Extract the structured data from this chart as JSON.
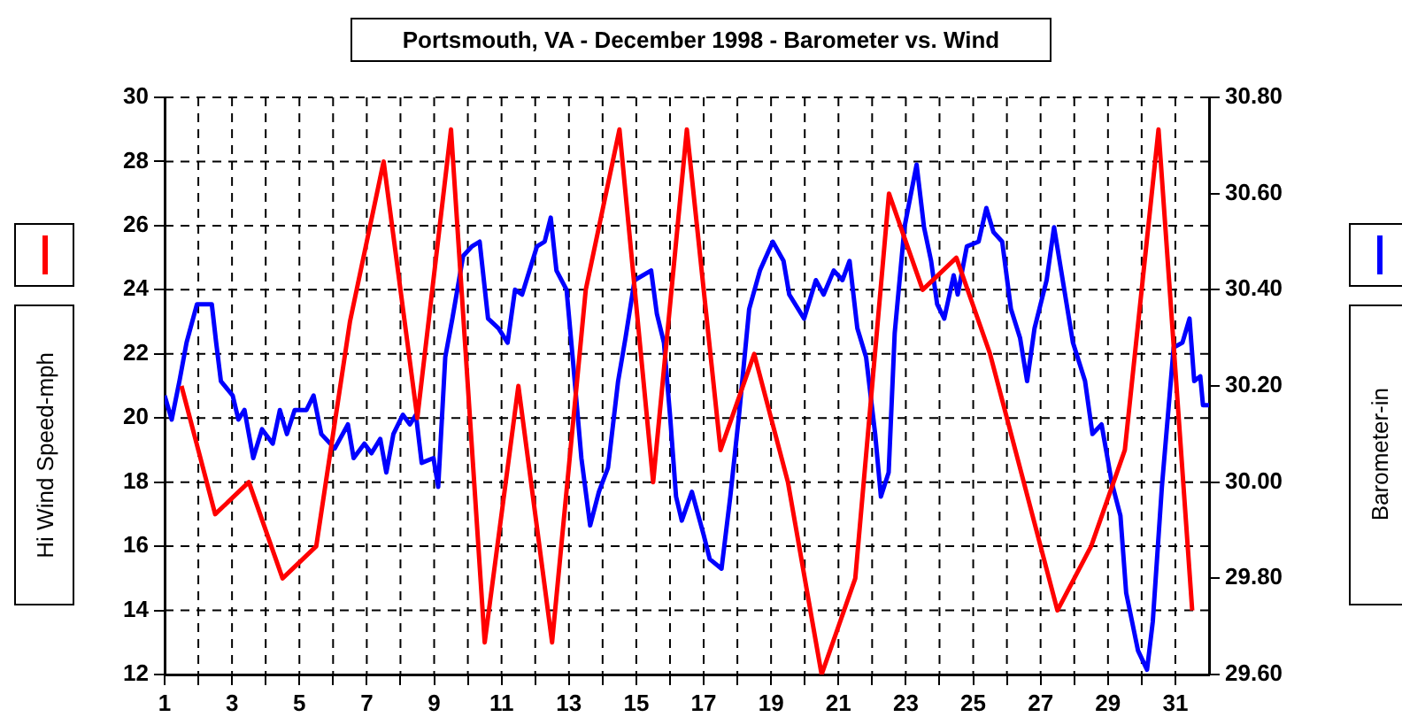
{
  "chart_data": {
    "type": "line",
    "title": "Portsmouth, VA - December 1998 - Barometer vs. Wind",
    "ylabel": "Hi Wind Speed-mph",
    "y2label": "Barometer-in",
    "xlim": [
      1,
      32
    ],
    "xticks": [
      1,
      {
        "value": 2,
        "label": null
      },
      3,
      {
        "value": 4,
        "label": null
      },
      5,
      {
        "value": 6,
        "label": null
      },
      7,
      {
        "value": 8,
        "label": null
      },
      9,
      {
        "value": 10,
        "label": null
      },
      11,
      {
        "value": 12,
        "label": null
      },
      13,
      {
        "value": 14,
        "label": null
      },
      15,
      {
        "value": 16,
        "label": null
      },
      17,
      {
        "value": 18,
        "label": null
      },
      19,
      {
        "value": 20,
        "label": null
      },
      21,
      {
        "value": 22,
        "label": null
      },
      23,
      {
        "value": 24,
        "label": null
      },
      25,
      {
        "value": 26,
        "label": null
      },
      27,
      {
        "value": 28,
        "label": null
      },
      29,
      {
        "value": 30,
        "label": null
      },
      31
    ],
    "ylim": [
      12,
      30
    ],
    "yticks": [
      12,
      14,
      16,
      18,
      20,
      22,
      24,
      26,
      28,
      30
    ],
    "y2lim": [
      29.6,
      30.8
    ],
    "y2ticks": [
      {
        "value": 29.6,
        "label": "29.60"
      },
      {
        "value": 29.8,
        "label": "29.80"
      },
      {
        "value": 30,
        "label": "30.00"
      },
      {
        "value": 30.2,
        "label": "30.20"
      },
      {
        "value": 30.4,
        "label": "30.40"
      },
      {
        "value": 30.6,
        "label": "30.60"
      },
      {
        "value": 30.8,
        "label": "30.80"
      }
    ],
    "grid": true,
    "marker": "none",
    "series": [
      {
        "color": "#ff0000",
        "x": [
          1.5,
          2.5,
          3.5,
          4.5,
          5.5,
          6.5,
          7.5,
          8.5,
          9.5,
          10.5,
          11.5,
          12.5,
          13.5,
          14.5,
          15.5,
          16.5,
          17.5,
          18.5,
          19.5,
          20.5,
          21.5,
          22.5,
          23.5,
          24.5,
          25.5,
          26.5,
          27.5,
          28.5,
          29.5,
          30.5,
          31.5
        ],
        "values": [
          21,
          17,
          18,
          15,
          16,
          23,
          28,
          20,
          29,
          13,
          21,
          13,
          24,
          29,
          18,
          29,
          19,
          22,
          18,
          12,
          15,
          27,
          24,
          25,
          22,
          18,
          14,
          16,
          19,
          29,
          14
        ]
      },
      {
        "color": "#0000ff",
        "axis": "y2",
        "x": [
          1.0,
          1.21,
          1.44,
          1.65,
          1.96,
          2.4,
          2.53,
          2.67,
          3.02,
          3.19,
          3.37,
          3.63,
          3.89,
          4.21,
          4.42,
          4.63,
          4.86,
          5.21,
          5.42,
          5.65,
          6.05,
          6.44,
          6.61,
          6.93,
          7.14,
          7.4,
          7.58,
          7.79,
          8.07,
          8.28,
          8.46,
          8.63,
          8.98,
          9.12,
          9.33,
          9.54,
          9.86,
          10.12,
          10.35,
          10.6,
          10.91,
          11.18,
          11.4,
          11.61,
          12.05,
          12.28,
          12.46,
          12.63,
          12.93,
          13.11,
          13.37,
          13.63,
          13.89,
          14.16,
          14.46,
          14.68,
          14.95,
          15.44,
          15.61,
          15.82,
          16.0,
          16.18,
          16.35,
          16.65,
          17.0,
          17.18,
          17.53,
          17.79,
          18.05,
          18.35,
          18.67,
          19.05,
          19.37,
          19.54,
          19.98,
          20.33,
          20.56,
          20.86,
          21.12,
          21.33,
          21.56,
          21.82,
          22.09,
          22.26,
          22.49,
          22.67,
          22.96,
          23.32,
          23.54,
          23.75,
          23.93,
          24.14,
          24.42,
          24.54,
          24.81,
          25.16,
          25.39,
          25.6,
          25.86,
          26.12,
          26.39,
          26.6,
          26.82,
          27.18,
          27.4,
          27.61,
          27.96,
          28.32,
          28.54,
          28.81,
          29.11,
          29.37,
          29.54,
          29.89,
          30.16,
          30.33,
          30.6,
          30.95,
          31.21,
          31.42,
          31.56,
          31.74,
          31.82,
          32.0
        ],
        "values": [
          30.18,
          30.13,
          30.21,
          30.29,
          30.37,
          30.37,
          30.29,
          30.21,
          30.18,
          30.13,
          30.15,
          30.05,
          30.11,
          30.08,
          30.15,
          30.1,
          30.15,
          30.15,
          30.18,
          30.1,
          30.07,
          30.12,
          30.05,
          30.08,
          30.06,
          30.09,
          30.02,
          30.1,
          30.14,
          30.12,
          30.14,
          30.04,
          30.05,
          29.99,
          30.26,
          30.34,
          30.47,
          30.49,
          30.5,
          30.34,
          30.32,
          30.29,
          30.4,
          30.39,
          30.49,
          30.5,
          30.55,
          30.44,
          30.4,
          30.26,
          30.05,
          29.91,
          29.98,
          30.03,
          30.21,
          30.3,
          30.42,
          30.44,
          30.35,
          30.29,
          30.14,
          29.97,
          29.92,
          29.98,
          29.89,
          29.84,
          29.82,
          29.97,
          30.14,
          30.36,
          30.44,
          30.5,
          30.46,
          30.39,
          30.34,
          30.42,
          30.39,
          30.44,
          30.42,
          30.46,
          30.32,
          30.26,
          30.1,
          29.97,
          30.02,
          30.31,
          30.53,
          30.66,
          30.53,
          30.46,
          30.37,
          30.34,
          30.43,
          30.39,
          30.49,
          30.5,
          30.57,
          30.52,
          30.5,
          30.36,
          30.3,
          30.21,
          30.32,
          30.42,
          30.53,
          30.44,
          30.29,
          30.21,
          30.1,
          30.12,
          30.0,
          29.93,
          29.77,
          29.65,
          29.61,
          29.71,
          29.99,
          30.28,
          30.29,
          30.34,
          30.21,
          30.22,
          30.16,
          30.16
        ]
      }
    ]
  }
}
